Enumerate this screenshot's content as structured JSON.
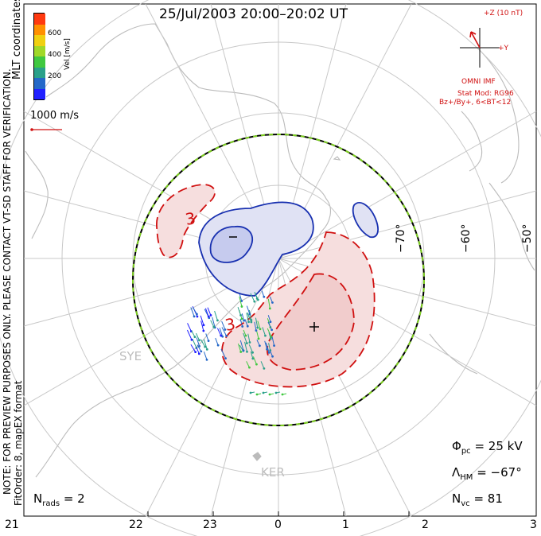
{
  "title": "25/Jul/2003  20:00–20:02  UT",
  "colorbar": {
    "label": "Vel [m/s]",
    "ticks": [
      "600",
      "400",
      "200"
    ],
    "colors": [
      "#2020ff",
      "#2468c8",
      "#2aa08a",
      "#40c840",
      "#a0d828",
      "#f0d010",
      "#ff9000",
      "#ff3a10"
    ]
  },
  "coord_label": "MLT coordinates",
  "scale_vector": "1000 m/s",
  "watermark": "NOTE: FOR PREVIEW PURPOSES ONLY. PLEASE CONTACT VT-SD STAFF FOR VERIFICATION.",
  "fit_info": "FitOrder: 8, mapEX format",
  "imf": {
    "z_label": "+Z (10 nT)",
    "y_label": "+Y",
    "source": "OMNI IMF",
    "model": "Stat Mod: RG96",
    "bin": "Bz+/By+, 6<BT<12"
  },
  "lat_labels": [
    "−70°",
    "−60°",
    "−50°"
  ],
  "mlt_ticks": [
    "21",
    "22",
    "23",
    "0",
    "1",
    "2",
    "3"
  ],
  "contour_labels": [
    "3",
    "3"
  ],
  "stations": [
    "SYE",
    "KER"
  ],
  "stats": {
    "phi_sym": "Φ",
    "phi_sub": "pc",
    "phi_val": "=  25 kV",
    "lam_sym": "Λ",
    "lam_sub": "HM",
    "lam_val": "=  −67°",
    "nvc_sym": "N",
    "nvc_sub": "vc",
    "nvc_val": "=  81",
    "nrads_sym": "N",
    "nrads_sub": "rads",
    "nrads_val": "=  2"
  }
}
